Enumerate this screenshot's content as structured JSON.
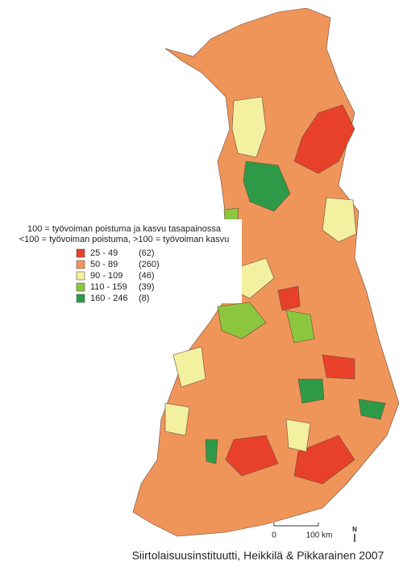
{
  "legend": {
    "title_lines": [
      "100 = työvoiman poistuma ja kasvu tasapainossa",
      "<100 = työvoiman poistuma, >100 = työvoiman kasvu"
    ],
    "items": [
      {
        "range": "25 -  49",
        "count": "(62)",
        "color": "#e8412a"
      },
      {
        "range": "50 -  89",
        "count": "(260)",
        "color": "#f0955a"
      },
      {
        "range": "90 - 109",
        "count": "(46)",
        "color": "#f3f0a0"
      },
      {
        "range": "110 - 159",
        "count": "(39)",
        "color": "#8cc63f"
      },
      {
        "range": "160 - 246",
        "count": "(8)",
        "color": "#2e9a48"
      }
    ]
  },
  "scale_bar": {
    "start": "0",
    "end": "100 km"
  },
  "north": "N",
  "credit": "Siirtolaisuusinstituutti, Heikkilä & Pikkarainen 2007"
}
